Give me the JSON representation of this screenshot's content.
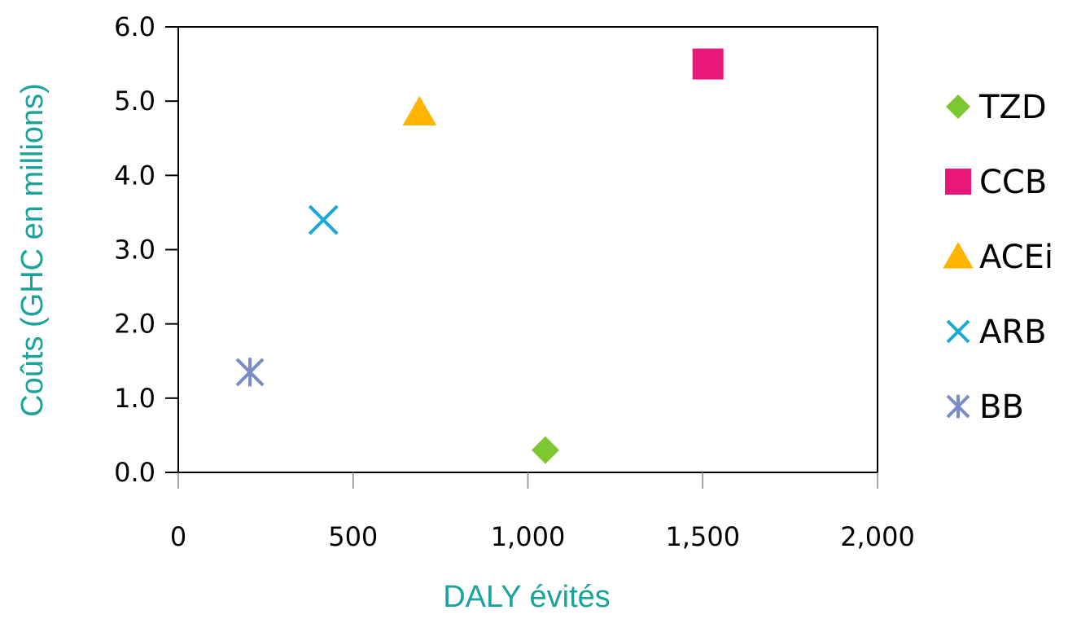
{
  "chart_data": {
    "type": "scatter",
    "title": "",
    "xlabel": "DALY évités",
    "ylabel": "Coûts (GHC en millions)",
    "xlim": [
      0,
      2000
    ],
    "ylim": [
      0,
      6
    ],
    "x_ticks": [
      "0",
      "500",
      "1,000",
      "1,500",
      "2,000"
    ],
    "x_tick_values": [
      0,
      500,
      1000,
      1500,
      2000
    ],
    "y_ticks": [
      "0.0",
      "1.0",
      "2.0",
      "3.0",
      "4.0",
      "5.0",
      "6.0"
    ],
    "y_tick_values": [
      0,
      1,
      2,
      3,
      4,
      5,
      6
    ],
    "grid": false,
    "legend_position": "right",
    "label_color": "#1aa39a",
    "series": [
      {
        "name": "TZD",
        "marker": "diamond",
        "color": "#7dc832",
        "x": 1050,
        "y": 0.3
      },
      {
        "name": "CCB",
        "marker": "square",
        "color": "#e8177a",
        "x": 1515,
        "y": 5.5
      },
      {
        "name": "ACEi",
        "marker": "triangle",
        "color": "#ffb400",
        "x": 690,
        "y": 4.85
      },
      {
        "name": "ARB",
        "marker": "x",
        "color": "#1aa8d8",
        "x": 415,
        "y": 3.4
      },
      {
        "name": "BB",
        "marker": "star",
        "color": "#7a8cc8",
        "x": 205,
        "y": 1.35
      }
    ]
  }
}
